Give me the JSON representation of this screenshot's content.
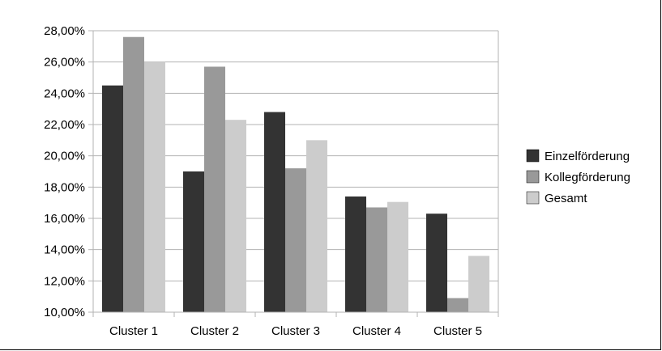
{
  "chart_data": {
    "type": "bar",
    "title": "",
    "xlabel": "",
    "ylabel": "",
    "categories": [
      "Cluster 1",
      "Cluster 2",
      "Cluster 3",
      "Cluster 4",
      "Cluster 5"
    ],
    "series": [
      {
        "name": "Einzelförderung",
        "values": [
          24.5,
          19.0,
          22.8,
          17.4,
          16.3
        ],
        "color": "#333333"
      },
      {
        "name": "Kollegförderung",
        "values": [
          27.6,
          25.7,
          19.2,
          16.7,
          10.9
        ],
        "color": "#999999"
      },
      {
        "name": "Gesamt",
        "values": [
          26.0,
          22.3,
          21.0,
          17.05,
          13.6
        ],
        "color": "#cccccc"
      }
    ],
    "ylim": [
      10,
      28
    ],
    "yticks": [
      10,
      12,
      14,
      16,
      18,
      20,
      22,
      24,
      26,
      28
    ],
    "ytick_labels": [
      "10,00%",
      "12,00%",
      "14,00%",
      "16,00%",
      "18,00%",
      "20,00%",
      "22,00%",
      "24,00%",
      "26,00%",
      "28,00%"
    ],
    "grid": true,
    "legend_position": "right"
  }
}
